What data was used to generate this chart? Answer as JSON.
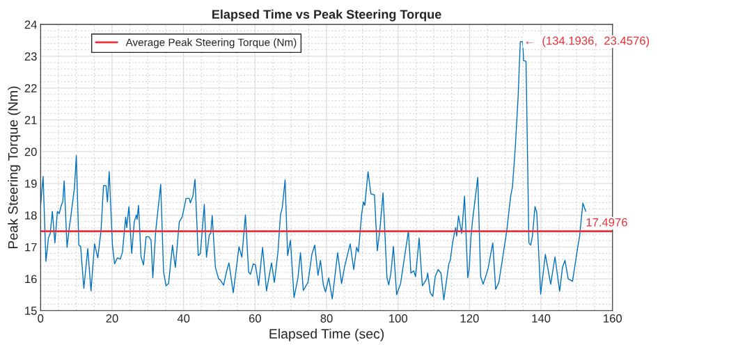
{
  "chart_data": {
    "type": "line",
    "title": "Elapsed Time vs Peak Steering Torque",
    "xlabel": "Elapsed Time (sec)",
    "ylabel": "Peak Steering Torque (Nm)",
    "xlim": [
      0,
      160
    ],
    "xticks": [
      0,
      20,
      40,
      60,
      80,
      100,
      120,
      140,
      160
    ],
    "ylim": [
      15,
      24
    ],
    "yticks": [
      15,
      16,
      17,
      18,
      19,
      20,
      21,
      22,
      23,
      24
    ],
    "grid": true,
    "legend": "top left",
    "marker": "none",
    "line_style": "solid",
    "series": [
      {
        "color": "#0072bd",
        "x": [
          0,
          0.7,
          1.5,
          2.2,
          2.7,
          3.3,
          4.0,
          4.7,
          5.2,
          5.8,
          6.2,
          6.6,
          7.4,
          8.1,
          8.4,
          9.5,
          10.0,
          10.7,
          11.2,
          12.1,
          13.2,
          14.1,
          15.1,
          16.0,
          16.9,
          17.6,
          18.3,
          18.7,
          19.2,
          20.1,
          20.7,
          21.5,
          22.3,
          22.9,
          23.8,
          24.1,
          24.7,
          25.5,
          26.2,
          26.8,
          27.0,
          27.4,
          28.1,
          28.8,
          29.5,
          30.3,
          30.9,
          31.4,
          32.2,
          33.6,
          34.4,
          35.1,
          35.8,
          36.9,
          37.7,
          38.8,
          39.6,
          40.3,
          40.7,
          41.6,
          41.9,
          42.6,
          43.2,
          44.1,
          44.7,
          45.8,
          46.4,
          47.2,
          47.6,
          48.0,
          48.9,
          49.8,
          50.3,
          51.2,
          52.0,
          52.7,
          53.9,
          55.5,
          56.3,
          57.3,
          58.2,
          58.7,
          59.5,
          60.1,
          61.0,
          62.1,
          63.2,
          64.6,
          65.4,
          66.4,
          67.1,
          67.6,
          68.4,
          69.1,
          69.9,
          70.9,
          72.0,
          72.7,
          73.5,
          74.8,
          75.9,
          76.7,
          77.6,
          78.3,
          79.1,
          79.7,
          80.6,
          81.6,
          83.1,
          84.2,
          85.0,
          86.6,
          87.6,
          88.4,
          88.9,
          89.8,
          90.3,
          90.7,
          91.6,
          92.4,
          93.4,
          94.2,
          95.0,
          95.8,
          96.9,
          97.4,
          98.0,
          98.7,
          99.6,
          100.7,
          102.9,
          103.6,
          104.4,
          104.9,
          105.9,
          106.8,
          108.0,
          108.3,
          109.0,
          109.7,
          110.4,
          111.2,
          112.0,
          112.8,
          114.2,
          114.6,
          115.3,
          116.1,
          116.4,
          116.9,
          117.8,
          118.6,
          119.5,
          119.9,
          120.4,
          120.9,
          122.3,
          123.1,
          123.8,
          124.5,
          125.2,
          126.5,
          127.3,
          128.2,
          129.0,
          130.4,
          131.5,
          132.0,
          132.8,
          133.6,
          134.1936,
          134.9,
          135.1,
          135.8,
          136.6,
          137.1,
          137.6,
          138.3,
          138.8,
          139.9,
          141.2,
          142.7,
          143.9,
          145.2,
          146.0,
          146.7,
          147.6,
          148.8,
          150.3,
          150.8,
          151.7,
          152.5
        ],
        "values": [
          18.3,
          19.22,
          16.55,
          17.29,
          17.43,
          18.12,
          17.13,
          18.12,
          18.05,
          18.31,
          18.42,
          19.08,
          16.99,
          17.68,
          17.9,
          18.89,
          19.88,
          17.06,
          17.02,
          15.7,
          16.95,
          15.62,
          17.1,
          16.66,
          17.5,
          18.93,
          18.93,
          18.42,
          19.37,
          17.06,
          16.47,
          16.66,
          16.62,
          16.84,
          17.94,
          17.61,
          18.27,
          16.8,
          17.79,
          18.01,
          17.87,
          18.31,
          16.69,
          16.44,
          17.32,
          17.32,
          17.21,
          16.03,
          17.5,
          18.97,
          16.22,
          15.78,
          15.85,
          17.06,
          16.36,
          17.79,
          17.94,
          18.31,
          18.53,
          18.53,
          18.39,
          18.6,
          19.13,
          16.73,
          16.8,
          18.34,
          16.68,
          17.39,
          17.43,
          17.99,
          16.36,
          16.0,
          15.96,
          15.8,
          16.22,
          16.5,
          15.56,
          17.01,
          16.68,
          18.01,
          16.22,
          16.14,
          16.47,
          16.44,
          15.79,
          16.99,
          15.62,
          16.5,
          15.89,
          16.84,
          18.01,
          18.23,
          19.11,
          16.73,
          17.21,
          15.41,
          16.03,
          16.82,
          15.63,
          15.89,
          16.77,
          17.06,
          16.11,
          16.58,
          15.81,
          15.59,
          16.03,
          15.37,
          16.82,
          15.85,
          16.36,
          17.1,
          16.29,
          16.99,
          16.84,
          18.01,
          18.42,
          18.31,
          19.37,
          18.67,
          18.64,
          16.88,
          17.65,
          18.7,
          16.03,
          15.81,
          16.18,
          17.02,
          15.5,
          15.85,
          17.5,
          16.18,
          16.25,
          16.07,
          17.28,
          15.78,
          16.0,
          16.18,
          15.56,
          15.45,
          16.07,
          16.29,
          16.18,
          15.34,
          16.47,
          16.58,
          17.17,
          17.61,
          17.35,
          17.98,
          17.43,
          18.6,
          16.03,
          16.33,
          17.32,
          17.9,
          19.19,
          16.07,
          15.83,
          16.07,
          16.33,
          17.13,
          15.67,
          15.89,
          16.47,
          17.5,
          18.6,
          18.89,
          20.14,
          21.76,
          23.4576,
          23.46,
          22.86,
          22.84,
          17.13,
          17.06,
          17.35,
          18.27,
          18.09,
          15.52,
          16.77,
          15.83,
          16.69,
          15.61,
          16.36,
          16.58,
          16.0,
          15.92,
          17.02,
          17.35,
          18.38,
          18.12
        ]
      }
    ],
    "ref_lines": [
      {
        "axis": "y",
        "value": 17.4976,
        "label": "Average Peak Steering Torque (Nm)",
        "color": "#e8313a",
        "line_style": "solid"
      }
    ],
    "annotations": [
      {
        "text": "17.4976",
        "x": 152.5,
        "y": 17.4976
      },
      {
        "text": "←  (134.1936,  23.4576)",
        "x": 134.1936,
        "y": 23.4576
      }
    ]
  }
}
